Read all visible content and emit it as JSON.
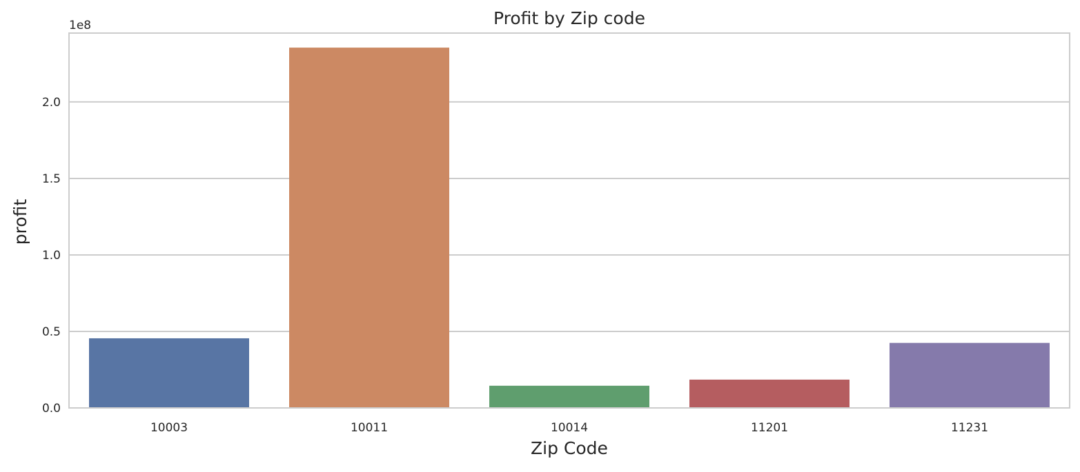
{
  "chart_data": {
    "type": "bar",
    "title": "Profit by Zip code",
    "xlabel": "Zip Code",
    "ylabel": "profit",
    "y_offset_label": "1e8",
    "categories": [
      "10003",
      "10011",
      "10014",
      "11201",
      "11231"
    ],
    "values": [
      45500000,
      235500000,
      14500000,
      18500000,
      42500000
    ],
    "colors": [
      "#5875a4",
      "#cc8963",
      "#5f9e6e",
      "#b55d60",
      "#857aab"
    ],
    "ylim": [
      0,
      245000000
    ],
    "yticks": [
      0,
      50000000,
      100000000,
      150000000,
      200000000
    ],
    "ytick_labels": [
      "0.0",
      "0.5",
      "1.0",
      "1.5",
      "2.0"
    ],
    "grid": "horizontal",
    "legend": "none"
  }
}
